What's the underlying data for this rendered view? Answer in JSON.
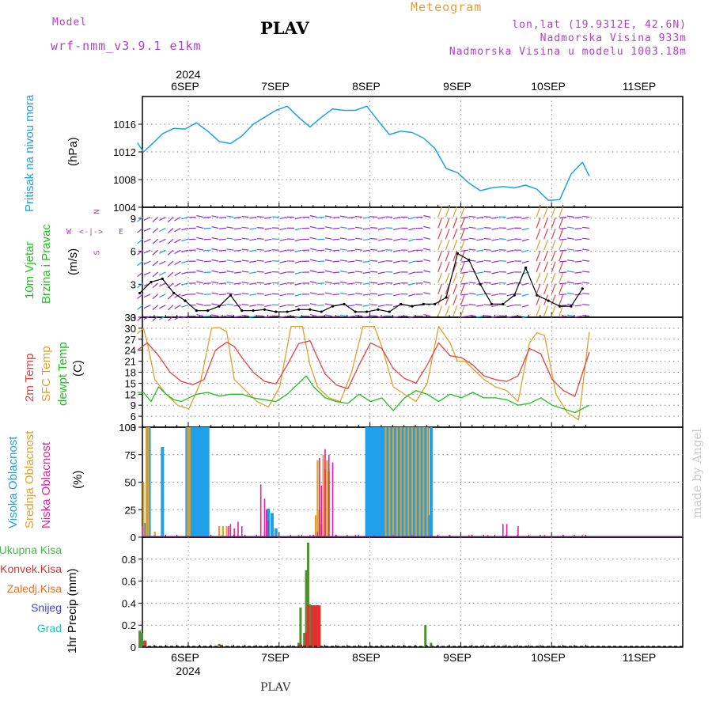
{
  "header": {
    "model_label": "Model",
    "model_name": "wrf-nmm_v3.9.1  e1km",
    "station": "PLAV",
    "product": "Meteogram",
    "coords": "lon,lat (19.9312E, 42.6N)",
    "altitude": "Nadmorska Visina 933m",
    "model_altitude": "Nadmorska Visina u modelu 1003.18m"
  },
  "footer": {
    "station": "PLAV",
    "credit": "made by Angel"
  },
  "axis": {
    "year_top": "2024",
    "year_bottom": "2024",
    "days": [
      "6SEP",
      "7SEP",
      "8SEP",
      "9SEP",
      "10SEP",
      "11SEP"
    ]
  },
  "colors": {
    "pressure": "#20a0e8",
    "t2m": "#e84040",
    "sfc": "#e0a030",
    "dewpt": "#20c020",
    "high_cloud": "#20a0e8",
    "mid_cloud": "#e0a030",
    "low_cloud": "#e020a0",
    "total_precip": "#509030",
    "conv_precip": "#e03030",
    "frz_precip": "#f07020",
    "snow": "#4040d0",
    "graupel": "#20c0c0"
  },
  "panels": {
    "pressure": {
      "label": "Pritisak na nivou mora",
      "unit": "(hPa)"
    },
    "wind": {
      "label1": "10m Vjetar",
      "label2": "Brzina i Pravac",
      "unit": "(m/s)",
      "compass_n": "N",
      "compass_s": "S",
      "compass_w": "W",
      "compass_e": "E"
    },
    "temp": {
      "label1": "2m Temp",
      "label2": "SFC Temp",
      "label3": "dewpt Temp",
      "unit": "(C)"
    },
    "cloud": {
      "label1": "Visoka Oblacnost",
      "label2": "Srednja Oblacnost",
      "label3": "Niska Oblacnost",
      "unit": "(%)"
    },
    "precip": {
      "label": "1hr Precip (mm)",
      "legend": [
        "Ukupna Kisa",
        "Konvek.Kisa",
        "Zaledj.Kisa",
        "Snijeg",
        "Grad"
      ]
    }
  },
  "chart_data": [
    {
      "type": "line",
      "title": "Pritisak na nivou mora",
      "ylabel": "(hPa)",
      "ylim": [
        1004,
        1020
      ],
      "yticks": [
        "1004",
        "1008",
        "1012",
        "1016"
      ],
      "x_unit": "hours from 2024-09-06 00:00",
      "xlim": [
        -12.6,
        106.8
      ],
      "series": [
        {
          "name": "Pritisak na nivou mora",
          "x": [
            -12.6,
            -11,
            -9,
            -6,
            -3,
            0,
            3,
            6,
            9,
            12,
            15,
            18,
            21,
            24,
            27,
            30,
            33,
            36,
            39,
            42,
            45,
            48,
            51,
            54,
            57,
            60,
            63,
            66,
            69,
            72,
            75,
            78,
            81,
            84,
            87,
            90,
            93,
            96,
            99,
            102,
            105,
            106.8
          ],
          "values": [
            1013.3,
            1012,
            1013,
            1014.6,
            1015.4,
            1015.3,
            1016.2,
            1015,
            1013.5,
            1013.2,
            1014.3,
            1016,
            1017,
            1018,
            1018.6,
            1017,
            1015.6,
            1017,
            1018.2,
            1018,
            1018,
            1018.6,
            1016.5,
            1014.5,
            1015,
            1014.8,
            1014,
            1012.5,
            1009.6,
            1009,
            1007.5,
            1006.4,
            1006.8,
            1007,
            1006.8,
            1007.2,
            1006.6,
            1005,
            1005.1,
            1008.8,
            1010.5,
            1008.5
          ]
        }
      ]
    },
    {
      "type": "scatter",
      "title": "10m Vjetar Brzina i Pravac",
      "ylabel": "(m/s)",
      "ylim": [
        0,
        10
      ],
      "yticks": [
        "0",
        "3",
        "6",
        "9"
      ],
      "x_unit": "hours from 2024-09-06 00:00",
      "series": [
        {
          "name": "10m Vjetar",
          "x": [
            -12,
            -9,
            -6,
            -3,
            0,
            3,
            6,
            9,
            12,
            15,
            18,
            21,
            24,
            27,
            30,
            33,
            36,
            39,
            42,
            45,
            48,
            51,
            54,
            57,
            60,
            63,
            66,
            69,
            72,
            75,
            78,
            81,
            84,
            87,
            90,
            93,
            96,
            99,
            102,
            105
          ],
          "values": [
            2.2,
            3.2,
            3.5,
            2.2,
            1.5,
            0.6,
            0.6,
            1,
            2,
            0.6,
            0.6,
            0.7,
            0.5,
            0.5,
            0.7,
            0.7,
            0.5,
            1,
            1.2,
            0.5,
            0.5,
            0.7,
            0.5,
            1.2,
            1,
            1.2,
            1.2,
            1.8,
            5.8,
            5.2,
            3,
            1.2,
            1.2,
            2,
            4.5,
            2,
            1.5,
            1,
            1,
            2.6
          ]
        }
      ]
    },
    {
      "type": "line",
      "title": "2m / SFC / dewpt Temp",
      "ylabel": "(C)",
      "ylim": [
        3,
        33
      ],
      "yticks": [
        "3",
        "6",
        "9",
        "12",
        "15",
        "18",
        "21",
        "24",
        "27",
        "30",
        "33"
      ],
      "x_unit": "hours from 2024-09-06 00:00",
      "series": [
        {
          "name": "2m Temp",
          "x": [
            -12.6,
            -10,
            -7,
            -4,
            -1,
            2,
            5,
            8,
            11,
            13,
            15,
            18,
            21,
            24,
            27,
            30,
            33,
            35,
            37,
            40,
            43,
            46,
            49,
            52,
            55,
            58,
            61,
            64,
            67,
            70,
            73,
            76,
            79,
            82,
            85,
            88,
            91,
            94,
            97,
            100,
            103,
            106.8
          ],
          "values": [
            24,
            26,
            22.5,
            18,
            15.5,
            14.6,
            16,
            24,
            26.2,
            25,
            22,
            18,
            15.5,
            14.8,
            20,
            25.8,
            26.6,
            22,
            17.5,
            14.5,
            13.5,
            20,
            26,
            24.5,
            19,
            16.3,
            15,
            20,
            26,
            22.5,
            22,
            20,
            17,
            16,
            15.5,
            17,
            24.5,
            23,
            16,
            13,
            11.4,
            23.5
          ]
        },
        {
          "name": "SFC Temp",
          "x": [
            -12.6,
            -11,
            -10,
            -8,
            -5,
            -2,
            1,
            4,
            7,
            9,
            11,
            13,
            16,
            19,
            22,
            25,
            28,
            31,
            33,
            35,
            38,
            41,
            44,
            47,
            50,
            52,
            55,
            58,
            61,
            64,
            67,
            70,
            72,
            74,
            76,
            79,
            82,
            85,
            88,
            91,
            93,
            95,
            98,
            101,
            104,
            106.8
          ],
          "values": [
            28.5,
            30,
            26,
            16,
            12,
            9,
            8,
            15,
            30,
            30.2,
            29,
            16,
            13,
            10,
            8.5,
            14,
            30.5,
            30.5,
            20,
            14,
            11,
            10,
            18,
            30.5,
            30.5,
            25,
            14,
            12,
            10,
            15,
            30.5,
            26,
            21,
            21,
            19,
            16,
            14,
            13,
            10,
            26,
            28.8,
            28,
            12,
            7,
            5,
            29
          ]
        },
        {
          "name": "dewpt Temp",
          "x": [
            -12.6,
            -11,
            -9,
            -7,
            -5,
            -3,
            -1,
            1,
            3,
            6,
            9,
            12,
            15,
            18,
            21,
            24,
            27,
            30,
            32,
            34,
            37,
            40,
            43,
            46,
            49,
            52,
            55,
            58,
            61,
            64,
            67,
            70,
            73,
            76,
            79,
            82,
            85,
            88,
            91,
            94,
            97,
            100,
            103,
            106.8
          ],
          "values": [
            12.5,
            12.5,
            10,
            14,
            12,
            10.5,
            10,
            11,
            12,
            12.5,
            11.5,
            12,
            12,
            11,
            10.5,
            10,
            12,
            15,
            17,
            14,
            11,
            10,
            9.5,
            12,
            10,
            11,
            7.5,
            11,
            13,
            12,
            10,
            12,
            11,
            12.5,
            11,
            11,
            10.5,
            9,
            9.5,
            11,
            9,
            8,
            7,
            9
          ]
        }
      ]
    },
    {
      "type": "bar",
      "title": "Oblacnost",
      "ylabel": "(%)",
      "ylim": [
        0,
        100
      ],
      "yticks": [
        "0",
        "25",
        "50",
        "75",
        "100"
      ],
      "x_unit": "hours from 2024-09-06 00:00",
      "series": [
        {
          "name": "Visoka Oblacnost",
          "x": [
            -10.5,
            -10,
            -9.5,
            -6,
            0.5,
            1,
            1.5,
            2,
            2.5,
            3,
            3.5,
            4,
            4.5,
            5,
            5.5,
            6,
            22,
            23,
            24,
            48,
            48.5,
            49,
            49.5,
            50,
            50.5,
            51,
            51.5,
            52,
            52.5,
            53,
            53.5,
            54,
            54.5,
            55,
            55.5,
            56,
            56.5,
            57,
            57.5,
            58,
            58.5,
            59,
            59.5,
            60,
            60.5,
            61,
            61.5,
            62,
            62.5,
            63,
            63.5,
            64,
            64.5,
            65
          ],
          "values": [
            13,
            100,
            100,
            82,
            100,
            100,
            100,
            100,
            100,
            100,
            100,
            100,
            100,
            100,
            100,
            100,
            26,
            22,
            8,
            100,
            100,
            100,
            100,
            100,
            100,
            100,
            100,
            100,
            100,
            100,
            100,
            100,
            100,
            100,
            100,
            100,
            100,
            100,
            100,
            100,
            100,
            100,
            100,
            100,
            100,
            100,
            100,
            100,
            100,
            100,
            100,
            100,
            20,
            100
          ]
        },
        {
          "name": "Srednja Oblacnost",
          "x": [
            -11,
            -10.2,
            -9.7,
            -8,
            0.7,
            1.2,
            9,
            10,
            11,
            21,
            34.5,
            35,
            35.5,
            36,
            36.5,
            37,
            37.5,
            38,
            53,
            54,
            55,
            56,
            57,
            58,
            59,
            60,
            61,
            62,
            63,
            64
          ],
          "values": [
            50,
            100,
            100,
            5,
            100,
            100,
            10,
            10,
            10,
            5,
            20,
            70,
            25,
            12,
            75,
            62,
            70,
            60,
            100,
            100,
            100,
            100,
            100,
            100,
            100,
            100,
            100,
            100,
            100,
            100
          ]
        },
        {
          "name": "Niska Oblacnost",
          "x": [
            -11.3,
            11.5,
            12,
            13,
            14,
            15,
            20,
            21,
            21.5,
            22,
            30,
            33,
            34,
            35,
            35.5,
            36,
            37,
            38,
            39,
            40,
            45,
            50,
            55,
            60,
            65,
            70,
            75,
            80,
            84,
            85,
            88,
            95,
            100,
            105
          ],
          "values": [
            10,
            10,
            12,
            8,
            14,
            10,
            48,
            35,
            25,
            15,
            2,
            2,
            2,
            5,
            72,
            47,
            80,
            75,
            68,
            2,
            2,
            2,
            2,
            2,
            2,
            2,
            2,
            2,
            12,
            12,
            10,
            2,
            2,
            2
          ]
        }
      ]
    },
    {
      "type": "bar",
      "title": "1hr Precip",
      "ylabel": "1hr Precip (mm)",
      "ylim": [
        0,
        1
      ],
      "yticks": [
        "0",
        "0.2",
        "0.4",
        "0.6",
        "0.8"
      ],
      "x_unit": "hours from 2024-09-06 00:00",
      "series": [
        {
          "name": "Ukupna Kisa",
          "x": [
            -12,
            -11.5,
            -11,
            9,
            30,
            30.5,
            31.5,
            32,
            32.5,
            33,
            33.5,
            34,
            34.5,
            35,
            63.5,
            65
          ],
          "values": [
            0.15,
            0.13,
            0.06,
            0.03,
            0.04,
            0.36,
            0.13,
            0.7,
            0.95,
            0.39,
            0.38,
            0.38,
            0.38,
            0.38,
            0.2,
            0.04
          ]
        },
        {
          "name": "Konvek.Kisa",
          "x": [
            -11,
            9,
            30,
            31.5,
            32,
            33,
            33.5,
            34,
            34.5,
            35
          ],
          "values": [
            0.06,
            0.02,
            0.03,
            0.13,
            0.38,
            0.38,
            0.38,
            0.38,
            0.38,
            0.38
          ]
        }
      ]
    }
  ]
}
